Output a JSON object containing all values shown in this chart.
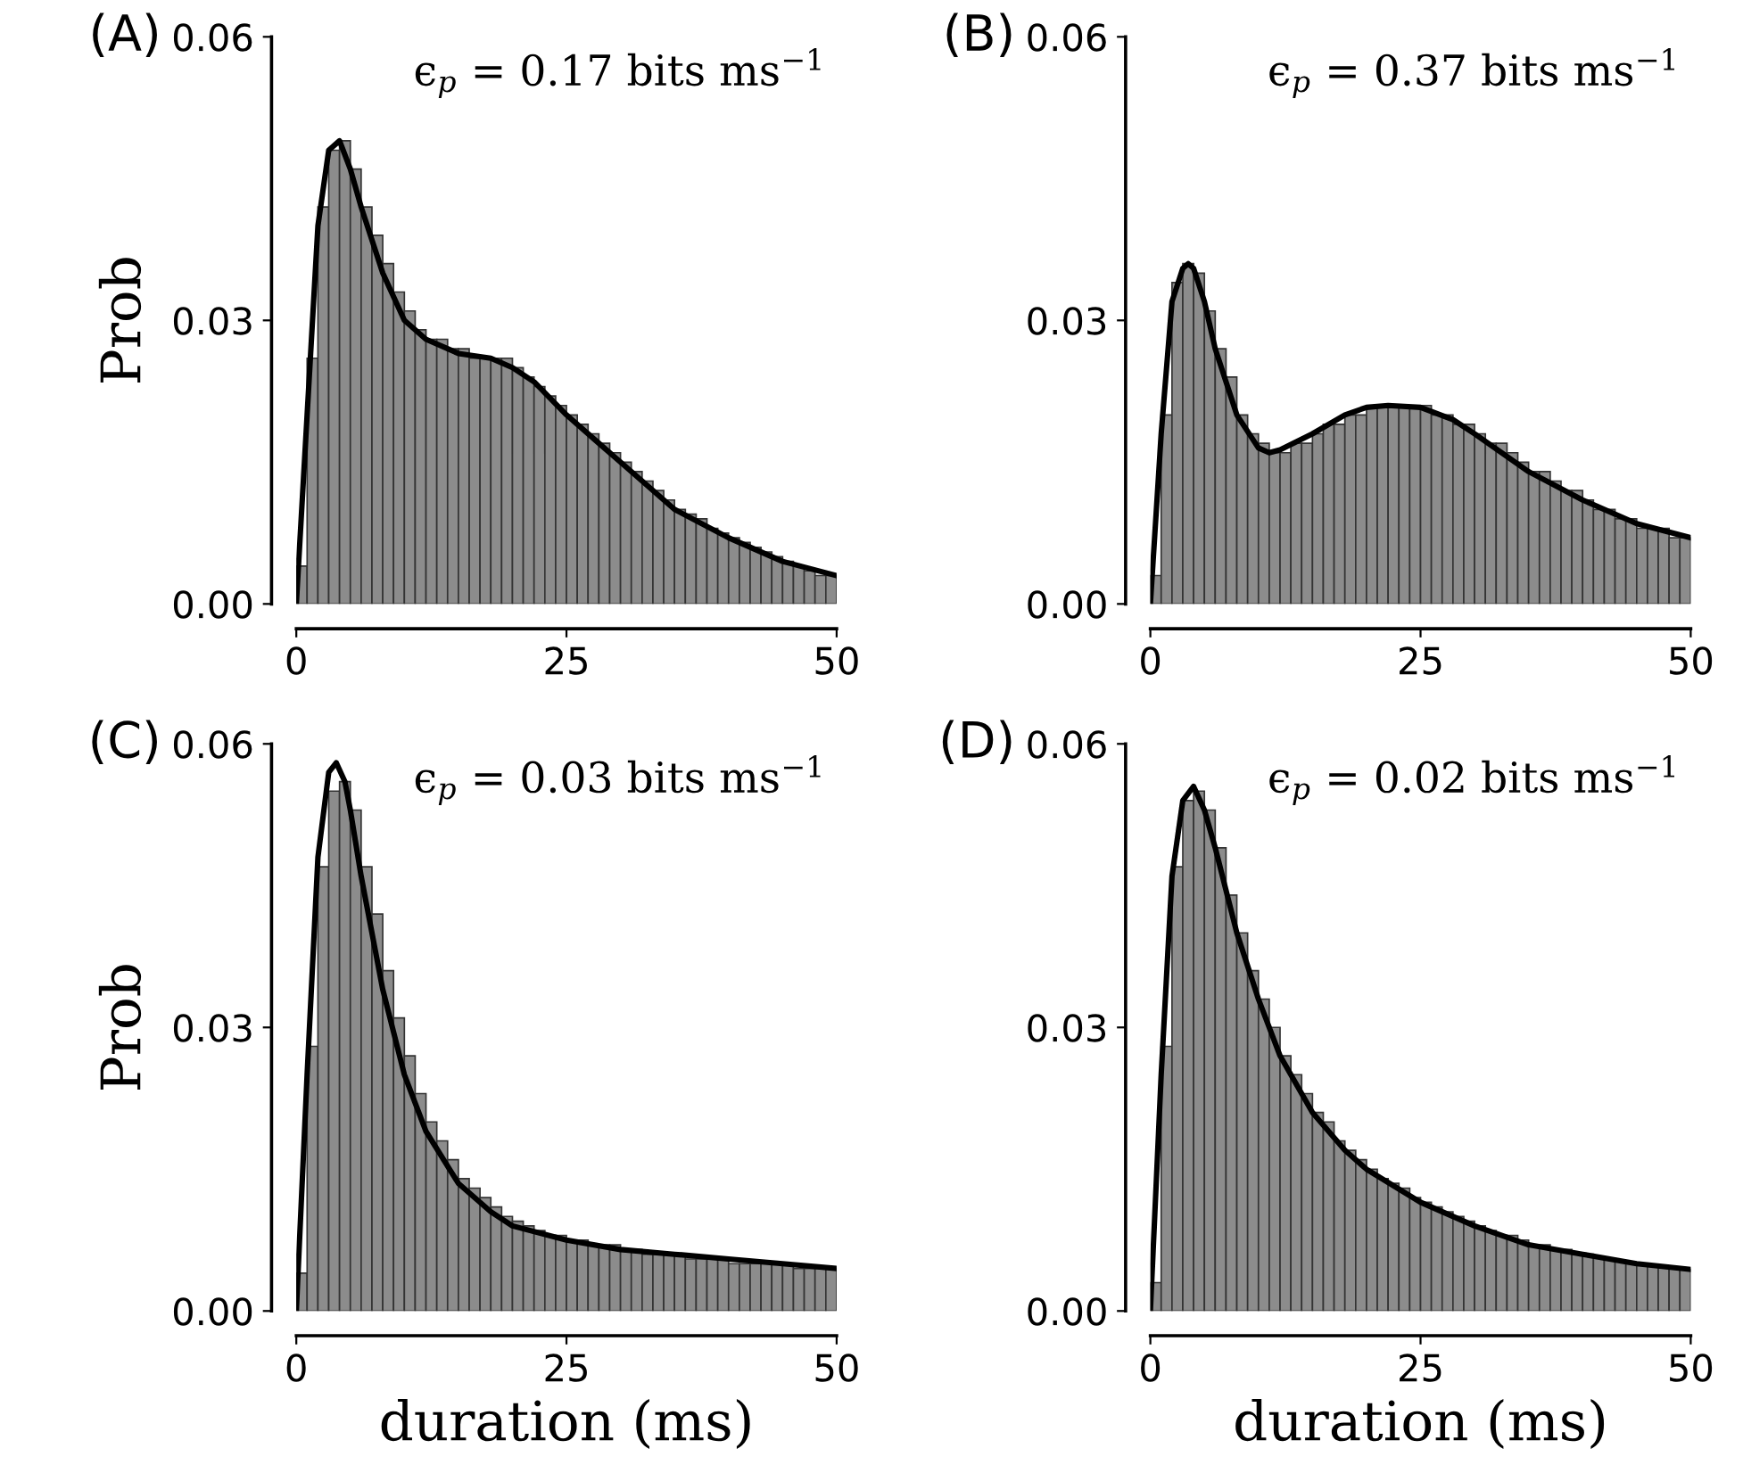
{
  "chart_data": [
    {
      "type": "histogram",
      "title": "(A)",
      "ylabel": "Prob",
      "annotations": [
        "ϵ$_{p}$ = 0.17 bits ms$^{−1}$"
      ],
      "xlim": [
        0,
        50
      ],
      "ylim": [
        0,
        0.06
      ],
      "xticks": [
        0,
        25,
        50
      ],
      "yticks": [
        {
          "value": 0,
          "label": "0.00"
        },
        {
          "value": 0.03,
          "label": "0.03"
        },
        {
          "value": 0.06,
          "label": "0.06"
        }
      ],
      "tick_labels": true,
      "bins": [
        0,
        1,
        2,
        3,
        4,
        5,
        6,
        7,
        8,
        9,
        10,
        11,
        12,
        13,
        14,
        15,
        16,
        17,
        18,
        19,
        20,
        21,
        22,
        23,
        24,
        25,
        26,
        27,
        28,
        29,
        30,
        31,
        32,
        33,
        34,
        35,
        36,
        37,
        38,
        39,
        40,
        41,
        42,
        43,
        44,
        45,
        46,
        47,
        48,
        49,
        50
      ],
      "series": [
        {
          "color": "#8c8c8c",
          "values": [
            0.004,
            0.026,
            0.042,
            0.048,
            0.049,
            0.046,
            0.042,
            0.039,
            0.036,
            0.033,
            0.031,
            0.029,
            0.028,
            0.028,
            0.027,
            0.027,
            0.026,
            0.026,
            0.026,
            0.026,
            0.025,
            0.024,
            0.023,
            0.022,
            0.021,
            0.02,
            0.019,
            0.018,
            0.017,
            0.016,
            0.015,
            0.014,
            0.013,
            0.012,
            0.011,
            0.01,
            0.0095,
            0.009,
            0.008,
            0.0075,
            0.007,
            0.0065,
            0.006,
            0.0055,
            0.005,
            0.0045,
            0.004,
            0.0035,
            0.003,
            0.003
          ]
        },
        {
          "type": "line",
          "color": "#000000",
          "x": [
            0,
            1,
            2,
            3,
            4,
            5,
            6,
            8,
            10,
            12,
            15,
            18,
            20,
            22,
            25,
            28,
            30,
            35,
            40,
            45,
            50
          ],
          "values": [
            0,
            0.02,
            0.04,
            0.048,
            0.049,
            0.046,
            0.042,
            0.035,
            0.03,
            0.028,
            0.0265,
            0.026,
            0.025,
            0.0235,
            0.02,
            0.017,
            0.015,
            0.01,
            0.007,
            0.0045,
            0.003
          ]
        }
      ]
    },
    {
      "type": "histogram",
      "title": "(B)",
      "annotations": [
        "ϵ$_{p}$ = 0.37 bits ms$^{−1}$"
      ],
      "xlim": [
        0,
        50
      ],
      "ylim": [
        0,
        0.06
      ],
      "xticks": [
        0,
        25,
        50
      ],
      "yticks": [
        {
          "value": 0,
          "label": "0.00"
        },
        {
          "value": 0.03,
          "label": "0.03"
        },
        {
          "value": 0.06,
          "label": "0.06"
        }
      ],
      "bins": [
        0,
        1,
        2,
        3,
        4,
        5,
        6,
        7,
        8,
        9,
        10,
        11,
        12,
        13,
        14,
        15,
        16,
        17,
        18,
        19,
        20,
        21,
        22,
        23,
        24,
        25,
        26,
        27,
        28,
        29,
        30,
        31,
        32,
        33,
        34,
        35,
        36,
        37,
        38,
        39,
        40,
        41,
        42,
        43,
        44,
        45,
        46,
        47,
        48,
        49,
        50
      ],
      "series": [
        {
          "color": "#8c8c8c",
          "values": [
            0.003,
            0.02,
            0.034,
            0.036,
            0.035,
            0.031,
            0.027,
            0.024,
            0.02,
            0.018,
            0.017,
            0.016,
            0.016,
            0.017,
            0.017,
            0.018,
            0.019,
            0.019,
            0.02,
            0.02,
            0.021,
            0.021,
            0.021,
            0.021,
            0.021,
            0.021,
            0.02,
            0.02,
            0.019,
            0.019,
            0.018,
            0.017,
            0.017,
            0.016,
            0.015,
            0.014,
            0.014,
            0.013,
            0.012,
            0.012,
            0.011,
            0.01,
            0.01,
            0.009,
            0.009,
            0.008,
            0.008,
            0.008,
            0.007,
            0.007
          ]
        },
        {
          "type": "line",
          "color": "#000000",
          "x": [
            0,
            1,
            2,
            3,
            3.5,
            4,
            5,
            6,
            8,
            10,
            11,
            12,
            15,
            18,
            20,
            22,
            25,
            28,
            30,
            35,
            40,
            45,
            50
          ],
          "values": [
            0,
            0.018,
            0.032,
            0.0355,
            0.036,
            0.0355,
            0.032,
            0.027,
            0.02,
            0.0165,
            0.016,
            0.0163,
            0.018,
            0.02,
            0.0208,
            0.021,
            0.0208,
            0.0195,
            0.018,
            0.014,
            0.011,
            0.0085,
            0.007
          ]
        }
      ]
    },
    {
      "type": "histogram",
      "title": "(C)",
      "ylabel": "Prob",
      "xlabel": "duration (ms)",
      "annotations": [
        "ϵ$_{p}$ = 0.03 bits ms$^{−1}$"
      ],
      "xlim": [
        0,
        50
      ],
      "ylim": [
        0,
        0.06
      ],
      "xticks": [
        0,
        25,
        50
      ],
      "yticks": [
        {
          "value": 0,
          "label": "0.00"
        },
        {
          "value": 0.03,
          "label": "0.03"
        },
        {
          "value": 0.06,
          "label": "0.06"
        }
      ],
      "bins": [
        0,
        1,
        2,
        3,
        4,
        5,
        6,
        7,
        8,
        9,
        10,
        11,
        12,
        13,
        14,
        15,
        16,
        17,
        18,
        19,
        20,
        21,
        22,
        23,
        24,
        25,
        26,
        27,
        28,
        29,
        30,
        31,
        32,
        33,
        34,
        35,
        36,
        37,
        38,
        39,
        40,
        41,
        42,
        43,
        44,
        45,
        46,
        47,
        48,
        49,
        50
      ],
      "series": [
        {
          "color": "#8c8c8c",
          "values": [
            0.004,
            0.028,
            0.047,
            0.055,
            0.056,
            0.053,
            0.047,
            0.042,
            0.036,
            0.031,
            0.027,
            0.023,
            0.02,
            0.018,
            0.016,
            0.014,
            0.013,
            0.012,
            0.011,
            0.01,
            0.0095,
            0.009,
            0.0085,
            0.008,
            0.008,
            0.0075,
            0.0075,
            0.007,
            0.007,
            0.007,
            0.0065,
            0.0065,
            0.006,
            0.006,
            0.006,
            0.006,
            0.0055,
            0.0055,
            0.0055,
            0.0055,
            0.005,
            0.005,
            0.005,
            0.005,
            0.005,
            0.005,
            0.0045,
            0.0045,
            0.0045,
            0.0045
          ]
        },
        {
          "type": "line",
          "color": "#000000",
          "x": [
            0,
            1,
            2,
            3,
            3.7,
            4.5,
            5,
            6,
            8,
            10,
            12,
            15,
            18,
            20,
            25,
            30,
            35,
            40,
            45,
            50
          ],
          "values": [
            0,
            0.025,
            0.048,
            0.057,
            0.058,
            0.056,
            0.053,
            0.046,
            0.034,
            0.025,
            0.019,
            0.0135,
            0.0105,
            0.009,
            0.0075,
            0.0065,
            0.006,
            0.0055,
            0.005,
            0.0045
          ]
        }
      ]
    },
    {
      "type": "histogram",
      "title": "(D)",
      "xlabel": "duration (ms)",
      "annotations": [
        "ϵ$_{p}$ = 0.02 bits ms$^{−1}$"
      ],
      "xlim": [
        0,
        50
      ],
      "ylim": [
        0,
        0.06
      ],
      "xticks": [
        0,
        25,
        50
      ],
      "yticks": [
        {
          "value": 0,
          "label": "0.00"
        },
        {
          "value": 0.03,
          "label": "0.03"
        },
        {
          "value": 0.06,
          "label": "0.06"
        }
      ],
      "bins": [
        0,
        1,
        2,
        3,
        4,
        5,
        6,
        7,
        8,
        9,
        10,
        11,
        12,
        13,
        14,
        15,
        16,
        17,
        18,
        19,
        20,
        21,
        22,
        23,
        24,
        25,
        26,
        27,
        28,
        29,
        30,
        31,
        32,
        33,
        34,
        35,
        36,
        37,
        38,
        39,
        40,
        41,
        42,
        43,
        44,
        45,
        46,
        47,
        48,
        49,
        50
      ],
      "series": [
        {
          "color": "#8c8c8c",
          "values": [
            0.003,
            0.028,
            0.047,
            0.054,
            0.055,
            0.053,
            0.049,
            0.044,
            0.04,
            0.036,
            0.033,
            0.03,
            0.027,
            0.025,
            0.023,
            0.021,
            0.02,
            0.018,
            0.017,
            0.016,
            0.015,
            0.014,
            0.0135,
            0.013,
            0.012,
            0.0115,
            0.011,
            0.0105,
            0.01,
            0.0095,
            0.009,
            0.0085,
            0.008,
            0.008,
            0.0075,
            0.007,
            0.007,
            0.0065,
            0.0065,
            0.006,
            0.006,
            0.0058,
            0.0055,
            0.0053,
            0.005,
            0.005,
            0.0048,
            0.0046,
            0.0045,
            0.0044
          ]
        },
        {
          "type": "line",
          "color": "#000000",
          "x": [
            0,
            1,
            2,
            3,
            4,
            5,
            6,
            8,
            10,
            12,
            15,
            18,
            20,
            25,
            30,
            35,
            40,
            45,
            50
          ],
          "values": [
            0,
            0.025,
            0.046,
            0.054,
            0.0555,
            0.053,
            0.049,
            0.04,
            0.033,
            0.027,
            0.021,
            0.017,
            0.015,
            0.0115,
            0.009,
            0.007,
            0.006,
            0.005,
            0.0044
          ]
        }
      ]
    }
  ]
}
